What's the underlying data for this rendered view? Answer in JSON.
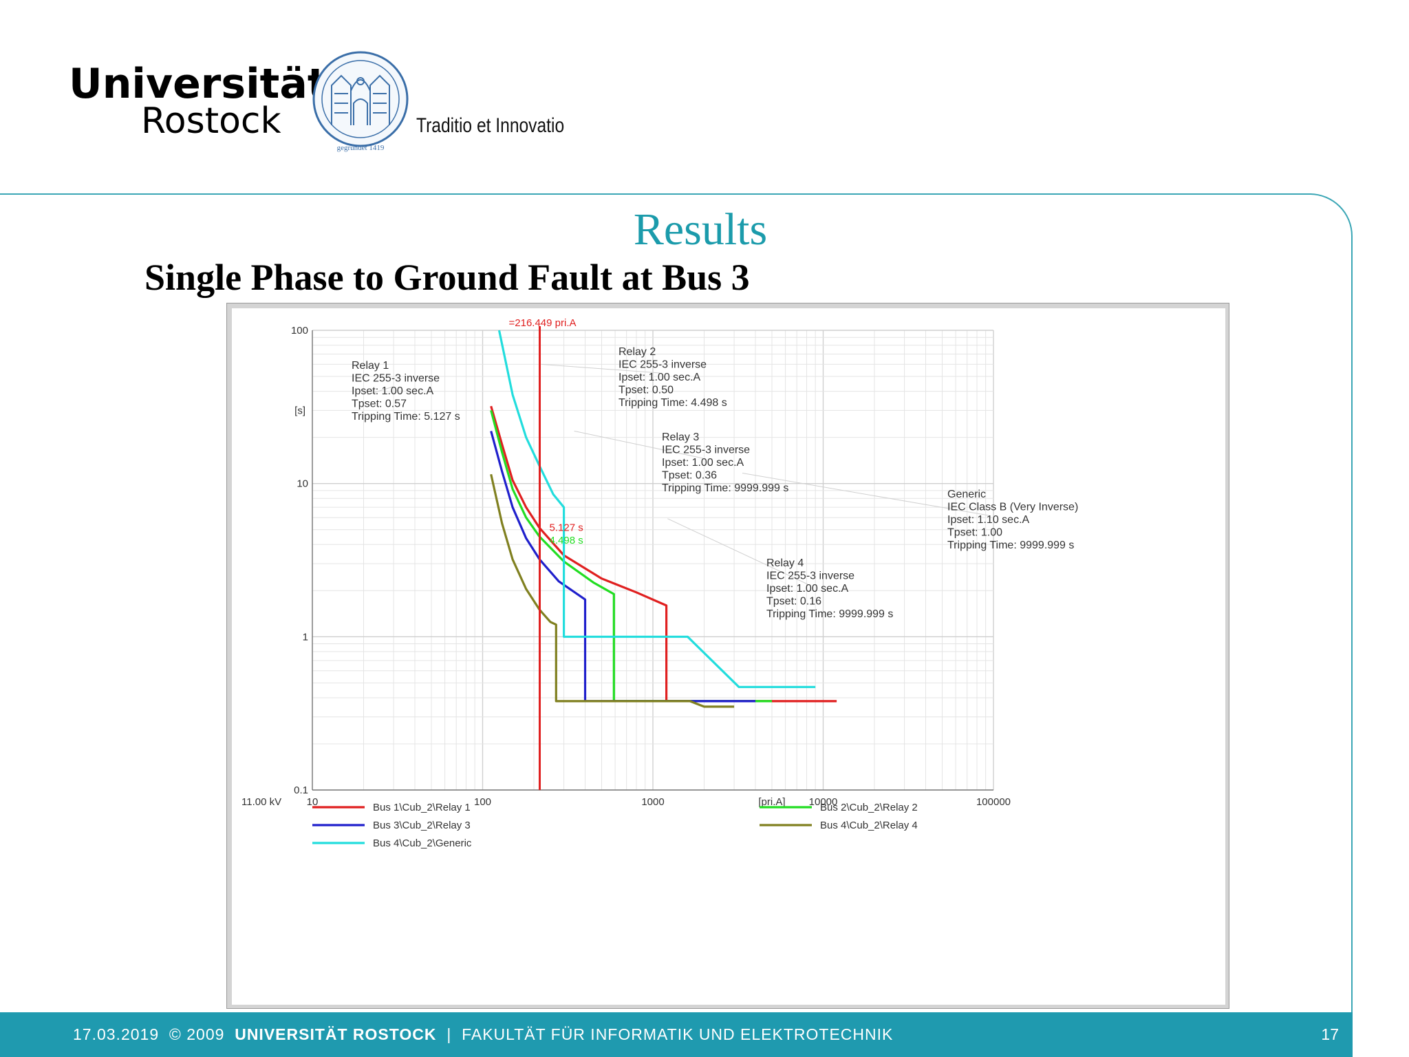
{
  "header": {
    "university_line1": "Universität",
    "university_line2": "Rostock",
    "seal_text": "gegründet 1419",
    "motto": "Traditio et Innovatio"
  },
  "slide": {
    "title": "Results",
    "subtitle": "Single Phase to Ground Fault at Bus 3"
  },
  "footer": {
    "date": "17.03.2019",
    "copyright": "©  2009",
    "university": "UNIVERSITÄT ROSTOCK",
    "separator": "|",
    "faculty": "FAKULTÄT  FÜR INFORMATIK UND ELEKTROTECHNIK",
    "page": "17"
  },
  "chart_data": {
    "type": "line",
    "x_scale": "log",
    "y_scale": "log",
    "xlim": [
      10,
      100000
    ],
    "ylim": [
      0.1,
      100
    ],
    "x_unit": "[pri.A]",
    "y_unit": "[s]",
    "voltage_label": "11.00 kV",
    "x_ticks": [
      "10",
      "100",
      "1000",
      "10000",
      "100000"
    ],
    "y_ticks": [
      "100",
      "10",
      "1",
      "0.1"
    ],
    "grid": true,
    "fault_current": 216.449,
    "fault_label": "=216.449 pri.A",
    "marker_labels": [
      {
        "text": "5.127 s",
        "color": "#e02020",
        "x": 216.449,
        "y": 5.127
      },
      {
        "text": "4.498 s",
        "color": "#22dd22",
        "x": 216.449,
        "y": 4.498
      }
    ],
    "annotations": [
      {
        "lines": [
          "Relay 1",
          "IEC 255-3 inverse",
          "Ipset: 1.00 sec.A",
          "Tpset: 0.57",
          "Tripping Time: 5.127 s"
        ],
        "anchor": [
          21,
          38
        ]
      },
      {
        "lines": [
          "Relay 2",
          "IEC 255-3 inverse",
          "Ipset: 1.00 sec.A",
          "Tpset: 0.50",
          "Tripping Time: 4.498 s"
        ],
        "anchor": [
          221,
          60
        ]
      },
      {
        "lines": [
          "Relay 3",
          "IEC 255-3 inverse",
          "Ipset: 1.00 sec.A",
          "Tpset: 0.36",
          "Tripping Time: 9999.999 s"
        ],
        "anchor": [
          345,
          22
        ]
      },
      {
        "lines": [
          "Generic",
          "IEC Class B (Very Inverse)",
          "Ipset: 1.10 sec.A",
          "Tpset: 1.00",
          "Tripping Time: 9999.999 s"
        ],
        "anchor": [
          3350,
          11.7
        ]
      },
      {
        "lines": [
          "Relay 4",
          "IEC 255-3 inverse",
          "Ipset: 1.00 sec.A",
          "Tpset: 0.16",
          "Tripping Time: 9999.999 s"
        ],
        "anchor": [
          1220,
          5.9
        ]
      }
    ],
    "series": [
      {
        "name": "Bus 1\\Cub_2\\Relay 1",
        "color": "#e02020",
        "points": [
          [
            112,
            32
          ],
          [
            130,
            18
          ],
          [
            150,
            10.5
          ],
          [
            180,
            7
          ],
          [
            216,
            5.127
          ],
          [
            300,
            3.4
          ],
          [
            500,
            2.4
          ],
          [
            800,
            1.95
          ],
          [
            1200,
            1.6
          ],
          [
            1200,
            0.38
          ],
          [
            12000,
            0.38
          ]
        ]
      },
      {
        "name": "Bus 2\\Cub_2\\Relay 2",
        "color": "#22dd22",
        "points": [
          [
            112,
            30
          ],
          [
            130,
            16
          ],
          [
            150,
            9.2
          ],
          [
            180,
            6
          ],
          [
            216,
            4.498
          ],
          [
            300,
            3.1
          ],
          [
            450,
            2.25
          ],
          [
            590,
            1.9
          ],
          [
            590,
            0.38
          ],
          [
            5000,
            0.38
          ]
        ]
      },
      {
        "name": "Bus 3\\Cub_2\\Relay 3",
        "color": "#2020cc",
        "points": [
          [
            112,
            22
          ],
          [
            130,
            12
          ],
          [
            150,
            7
          ],
          [
            180,
            4.4
          ],
          [
            216,
            3.2
          ],
          [
            280,
            2.3
          ],
          [
            400,
            1.75
          ],
          [
            400,
            0.38
          ],
          [
            4000,
            0.38
          ]
        ]
      },
      {
        "name": "Bus 4\\Cub_2\\Relay 4",
        "color": "#808020",
        "points": [
          [
            112,
            11.5
          ],
          [
            130,
            5.5
          ],
          [
            150,
            3.2
          ],
          [
            180,
            2.05
          ],
          [
            216,
            1.5
          ],
          [
            250,
            1.25
          ],
          [
            270,
            1.2
          ],
          [
            270,
            0.38
          ],
          [
            1650,
            0.38
          ],
          [
            2000,
            0.35
          ],
          [
            3000,
            0.35
          ]
        ]
      },
      {
        "name": "Bus 4\\Cub_2\\Generic",
        "color": "#22dddd",
        "points": [
          [
            125,
            100
          ],
          [
            150,
            38
          ],
          [
            180,
            20
          ],
          [
            216,
            13
          ],
          [
            260,
            8.5
          ],
          [
            300,
            7.0
          ],
          [
            300,
            1.0
          ],
          [
            1600,
            1.0
          ],
          [
            3200,
            0.47
          ],
          [
            9000,
            0.47
          ]
        ]
      }
    ],
    "legend": [
      {
        "name": "Bus 1\\Cub_2\\Relay 1",
        "color": "#e02020"
      },
      {
        "name": "Bus 3\\Cub_2\\Relay 3",
        "color": "#2020cc"
      },
      {
        "name": "Bus 4\\Cub_2\\Generic",
        "color": "#22dddd"
      },
      {
        "name": "Bus 2\\Cub_2\\Relay 2",
        "color": "#22dd22"
      },
      {
        "name": "Bus 4\\Cub_2\\Relay 4",
        "color": "#808020"
      }
    ]
  }
}
